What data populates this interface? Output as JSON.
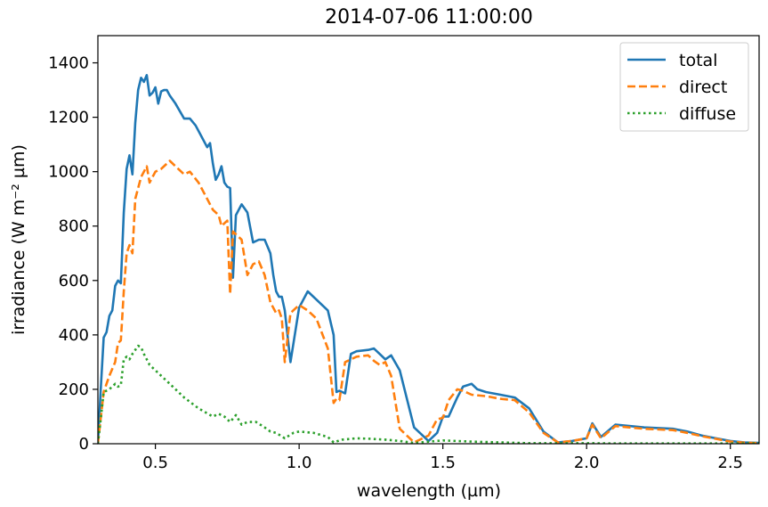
{
  "chart_data": {
    "type": "line",
    "title": "2014-07-06 11:00:00",
    "xlabel": "wavelength (µm)",
    "ylabel": "irradiance (W m⁻² µm)",
    "xlim": [
      0.3,
      2.6
    ],
    "ylim": [
      0,
      1500
    ],
    "xticks": [
      0.5,
      1.0,
      1.5,
      2.0,
      2.5
    ],
    "xtick_labels": [
      "0.5",
      "1.0",
      "1.5",
      "2.0",
      "2.5"
    ],
    "yticks": [
      0,
      200,
      400,
      600,
      800,
      1000,
      1200,
      1400
    ],
    "ytick_labels": [
      "0",
      "200",
      "400",
      "600",
      "800",
      "1000",
      "1200",
      "1400"
    ],
    "grid": false,
    "legend_position": "top-right",
    "series": [
      {
        "name": "total",
        "color": "#1f77b4",
        "style": "solid",
        "x": [
          0.3,
          0.31,
          0.32,
          0.33,
          0.34,
          0.35,
          0.36,
          0.37,
          0.38,
          0.39,
          0.4,
          0.41,
          0.42,
          0.43,
          0.44,
          0.45,
          0.46,
          0.47,
          0.48,
          0.49,
          0.5,
          0.51,
          0.52,
          0.53,
          0.54,
          0.55,
          0.57,
          0.6,
          0.62,
          0.64,
          0.66,
          0.68,
          0.69,
          0.7,
          0.71,
          0.72,
          0.73,
          0.74,
          0.75,
          0.76,
          0.77,
          0.78,
          0.8,
          0.82,
          0.84,
          0.86,
          0.88,
          0.9,
          0.91,
          0.92,
          0.93,
          0.94,
          0.95,
          0.97,
          1.0,
          1.03,
          1.06,
          1.1,
          1.12,
          1.13,
          1.14,
          1.16,
          1.18,
          1.2,
          1.24,
          1.26,
          1.28,
          1.3,
          1.32,
          1.35,
          1.4,
          1.45,
          1.48,
          1.5,
          1.52,
          1.55,
          1.57,
          1.6,
          1.62,
          1.65,
          1.7,
          1.75,
          1.8,
          1.85,
          1.9,
          1.95,
          2.0,
          2.02,
          2.05,
          2.1,
          2.2,
          2.3,
          2.35,
          2.4,
          2.45,
          2.5,
          2.55,
          2.6
        ],
        "y": [
          0,
          200,
          390,
          410,
          470,
          490,
          580,
          600,
          590,
          850,
          1010,
          1060,
          990,
          1180,
          1300,
          1345,
          1330,
          1355,
          1280,
          1290,
          1310,
          1250,
          1295,
          1300,
          1300,
          1280,
          1250,
          1195,
          1195,
          1170,
          1130,
          1090,
          1105,
          1030,
          970,
          990,
          1020,
          960,
          945,
          940,
          610,
          840,
          880,
          850,
          740,
          750,
          750,
          700,
          620,
          560,
          540,
          540,
          490,
          300,
          500,
          560,
          530,
          490,
          400,
          190,
          195,
          185,
          330,
          340,
          345,
          350,
          330,
          310,
          325,
          270,
          60,
          10,
          40,
          100,
          100,
          170,
          210,
          220,
          200,
          190,
          180,
          170,
          130,
          45,
          5,
          10,
          20,
          75,
          25,
          70,
          60,
          55,
          45,
          30,
          20,
          10,
          5,
          3
        ]
      },
      {
        "name": "direct",
        "color": "#ff7f0e",
        "style": "dashed",
        "x": [
          0.3,
          0.32,
          0.34,
          0.36,
          0.37,
          0.38,
          0.39,
          0.4,
          0.41,
          0.42,
          0.43,
          0.45,
          0.47,
          0.48,
          0.5,
          0.52,
          0.55,
          0.57,
          0.6,
          0.62,
          0.65,
          0.68,
          0.7,
          0.72,
          0.73,
          0.75,
          0.76,
          0.77,
          0.8,
          0.82,
          0.84,
          0.86,
          0.88,
          0.9,
          0.92,
          0.93,
          0.94,
          0.95,
          0.97,
          1.0,
          1.03,
          1.06,
          1.1,
          1.12,
          1.13,
          1.14,
          1.16,
          1.18,
          1.2,
          1.24,
          1.26,
          1.28,
          1.3,
          1.32,
          1.35,
          1.4,
          1.45,
          1.48,
          1.5,
          1.52,
          1.55,
          1.57,
          1.6,
          1.65,
          1.7,
          1.75,
          1.8,
          1.85,
          1.9,
          1.95,
          2.0,
          2.02,
          2.05,
          2.1,
          2.2,
          2.3,
          2.35,
          2.4,
          2.45,
          2.5,
          2.55,
          2.6
        ],
        "y": [
          0,
          190,
          250,
          300,
          370,
          380,
          560,
          700,
          730,
          700,
          900,
          980,
          1020,
          960,
          1000,
          1010,
          1040,
          1020,
          990,
          1000,
          960,
          900,
          860,
          840,
          800,
          820,
          550,
          780,
          750,
          620,
          660,
          670,
          620,
          520,
          480,
          490,
          460,
          300,
          480,
          510,
          490,
          460,
          350,
          150,
          165,
          160,
          300,
          310,
          320,
          325,
          305,
          290,
          300,
          250,
          55,
          5,
          30,
          90,
          95,
          160,
          200,
          195,
          180,
          175,
          165,
          160,
          115,
          40,
          5,
          10,
          20,
          70,
          20,
          65,
          55,
          50,
          40,
          28,
          18,
          8,
          4,
          2
        ]
      },
      {
        "name": "diffuse",
        "color": "#2ca02c",
        "style": "dotted",
        "x": [
          0.3,
          0.31,
          0.32,
          0.34,
          0.36,
          0.37,
          0.38,
          0.39,
          0.4,
          0.41,
          0.42,
          0.43,
          0.44,
          0.45,
          0.46,
          0.47,
          0.48,
          0.5,
          0.55,
          0.6,
          0.65,
          0.7,
          0.72,
          0.74,
          0.76,
          0.78,
          0.8,
          0.82,
          0.85,
          0.88,
          0.9,
          0.92,
          0.95,
          0.98,
          1.0,
          1.05,
          1.1,
          1.12,
          1.15,
          1.2,
          1.25,
          1.3,
          1.35,
          1.4,
          1.5,
          1.6,
          1.7,
          1.8,
          1.9,
          2.0,
          2.1,
          2.3,
          2.6
        ],
        "y": [
          0,
          90,
          190,
          200,
          220,
          210,
          215,
          310,
          320,
          310,
          330,
          345,
          360,
          355,
          330,
          310,
          290,
          270,
          220,
          170,
          130,
          100,
          110,
          100,
          80,
          105,
          70,
          80,
          80,
          60,
          45,
          40,
          20,
          40,
          45,
          40,
          25,
          5,
          15,
          20,
          18,
          15,
          10,
          3,
          12,
          8,
          5,
          2,
          2,
          2,
          1,
          1,
          1
        ]
      }
    ]
  }
}
